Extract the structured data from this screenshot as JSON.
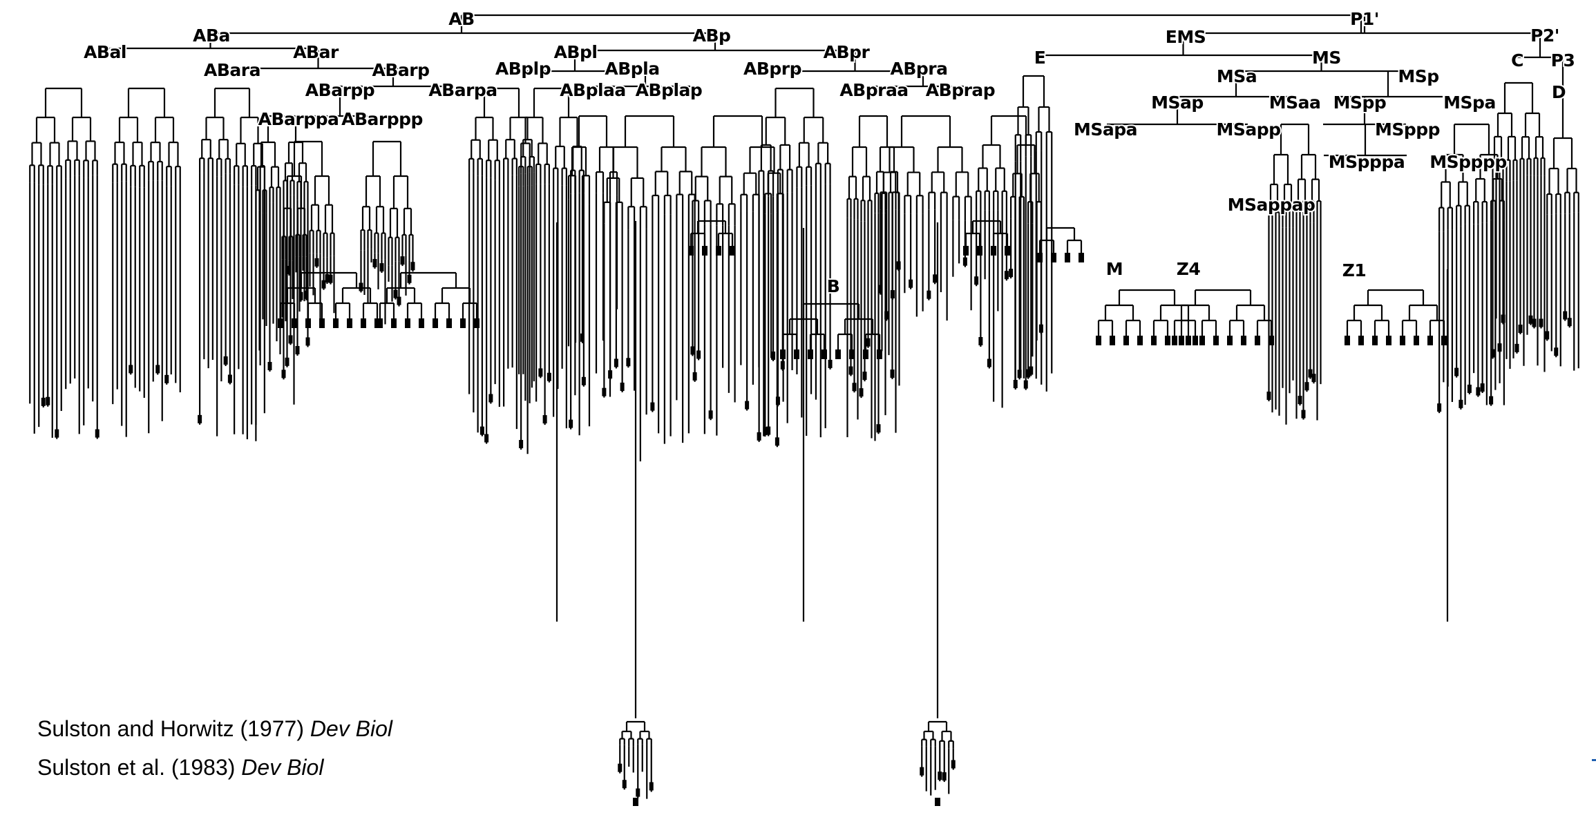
{
  "figure": {
    "colors": {
      "line": "#000000",
      "background": "#ffffff",
      "accent_mark": "#1f5fb0"
    },
    "lineage_labels": {
      "AB": "AB",
      "P1": "P1'",
      "ABa": "ABa",
      "ABp": "ABp",
      "EMS": "EMS",
      "P2": "P2'",
      "ABal": "ABal",
      "ABar": "ABar",
      "ABpl": "ABpl",
      "ABpr": "ABpr",
      "E": "E",
      "MS": "MS",
      "C": "C",
      "P3": "P3",
      "D": "D",
      "ABara": "ABara",
      "ABarp": "ABarp",
      "ABplp": "ABplp",
      "ABpla": "ABpla",
      "ABprp": "ABprp",
      "ABpra": "ABpra",
      "MSa": "MSa",
      "MSp": "MSp",
      "ABarpp": "ABarpp",
      "ABarpa": "ABarpa",
      "ABplaa": "ABplaa",
      "ABplap": "ABplap",
      "ABpraa": "ABpraa",
      "ABprap": "ABprap",
      "MSap": "MSap",
      "MSaa": "MSaa",
      "MSpp": "MSpp",
      "MSpa": "MSpa",
      "ABarppa": "ABarppa",
      "ABarppp": "ABarppp",
      "MSapa": "MSapa",
      "MSapp": "MSapp",
      "MSppp": "MSppp",
      "MSpppa": "MSpppa",
      "MSpppp": "MSpppp",
      "MSappap": "MSappap",
      "M": "M",
      "Z4": "Z4",
      "Z1": "Z1",
      "B": "B"
    },
    "citations": [
      {
        "text": "Sulston and Horwitz (1977) ",
        "journal": "Dev Biol"
      },
      {
        "text": "Sulston et al. (1983) ",
        "journal": "Dev Biol"
      }
    ]
  }
}
